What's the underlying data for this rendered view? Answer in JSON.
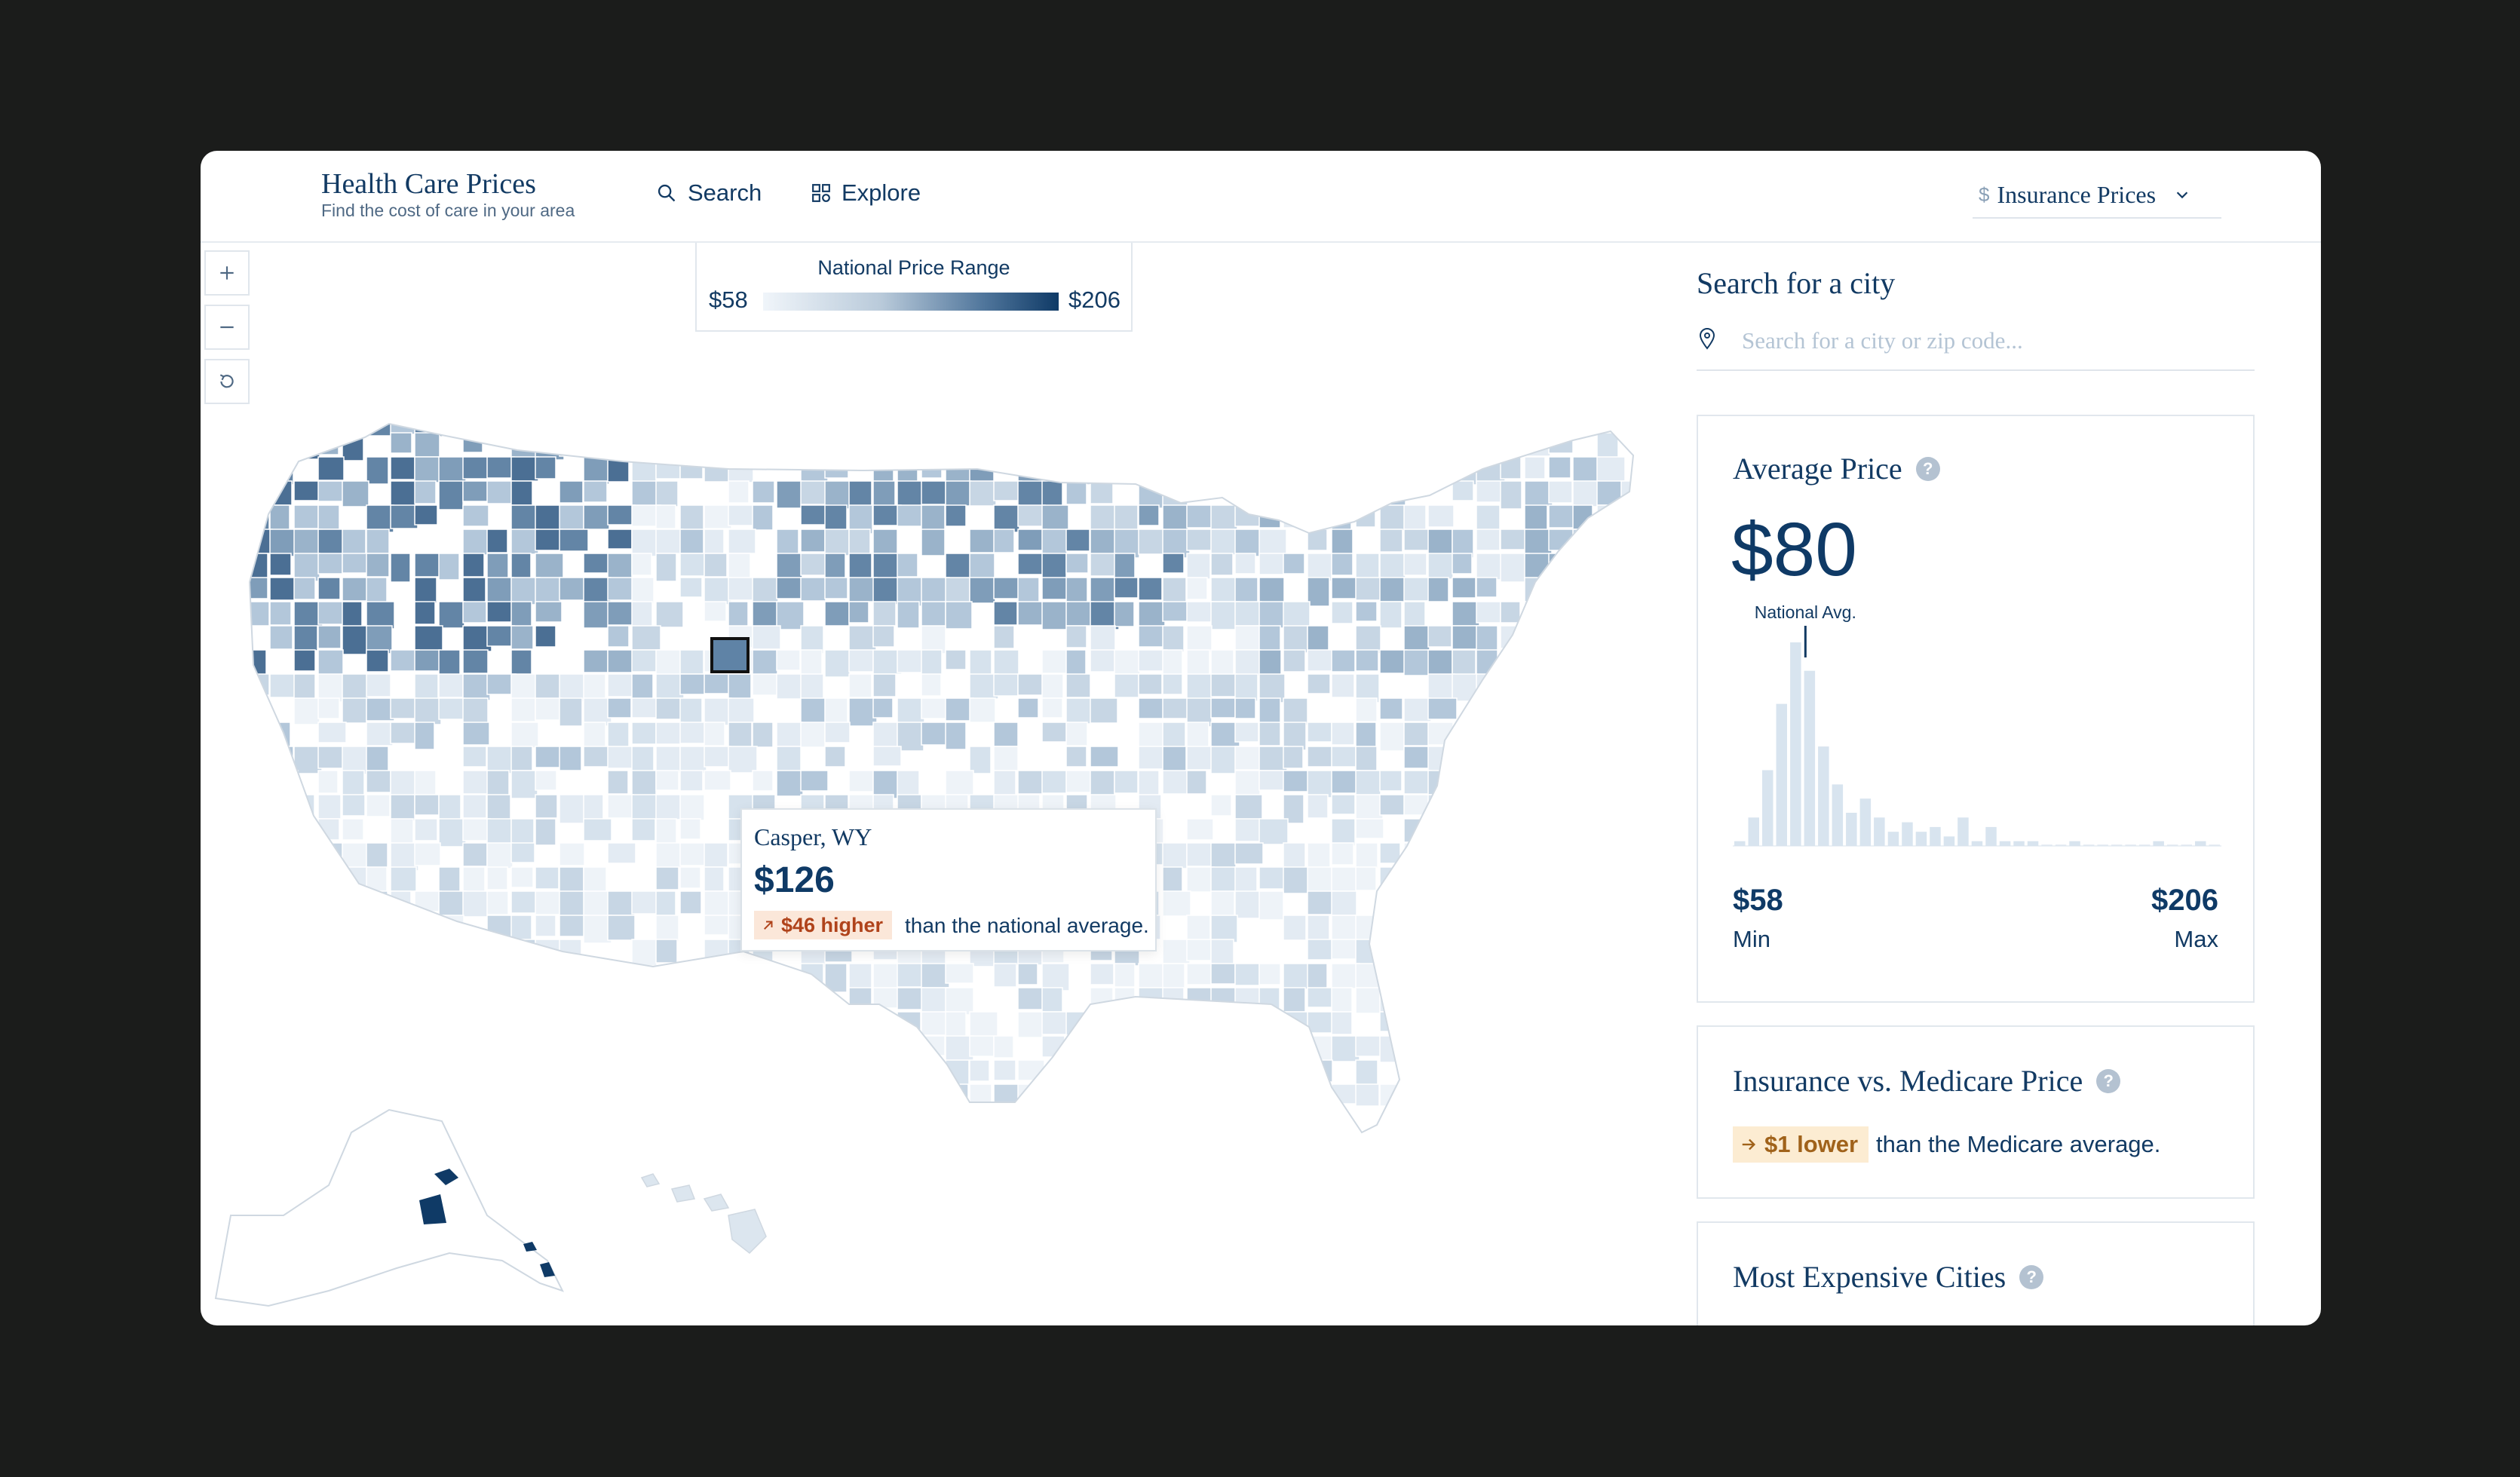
{
  "header": {
    "brand_title": "Health Care Prices",
    "brand_subtitle": "Find the cost of care in your area",
    "nav": [
      {
        "label": "Search",
        "icon": "search-icon"
      },
      {
        "label": "Explore",
        "icon": "grid-icon"
      }
    ],
    "price_type": {
      "prefix": "$",
      "label": "Insurance Prices",
      "icon": "chevron-down-icon"
    }
  },
  "map": {
    "zoom_controls": [
      "zoom-in",
      "zoom-out",
      "reset"
    ],
    "legend": {
      "title": "National Price Range",
      "min": "$58",
      "max": "$206"
    },
    "tooltip": {
      "city": "Casper, WY",
      "price": "$126",
      "badge": "$46 higher",
      "suffix": "than the national average."
    },
    "colors": {
      "lightest": "#eef3f8",
      "darkest": "#0f3a66"
    }
  },
  "sidebar": {
    "search": {
      "heading": "Search for a city",
      "placeholder": "Search for a city or zip code..."
    },
    "average_price": {
      "title": "Average Price",
      "value": "$80",
      "national_avg_label": "National Avg.",
      "min_value": "$58",
      "min_label": "Min",
      "max_value": "$206",
      "max_label": "Max"
    },
    "insurance_vs_medicare": {
      "title": "Insurance vs. Medicare Price",
      "badge": "$1 lower",
      "suffix": "than the Medicare average."
    },
    "most_expensive": {
      "title": "Most Expensive Cities"
    }
  },
  "chart_data": {
    "type": "bar",
    "title": "",
    "xlabel": "",
    "ylabel": "",
    "xlim": [
      58,
      206
    ],
    "values": [
      1,
      6,
      16,
      30,
      43,
      37,
      21,
      13,
      7,
      10,
      6,
      3,
      5,
      3,
      4,
      2,
      6,
      1,
      4,
      1,
      1,
      1,
      0,
      0,
      1,
      0,
      0,
      0,
      0,
      0,
      1,
      0,
      0,
      1,
      0
    ],
    "annotations": [
      "National Avg."
    ],
    "national_avg": 80
  }
}
